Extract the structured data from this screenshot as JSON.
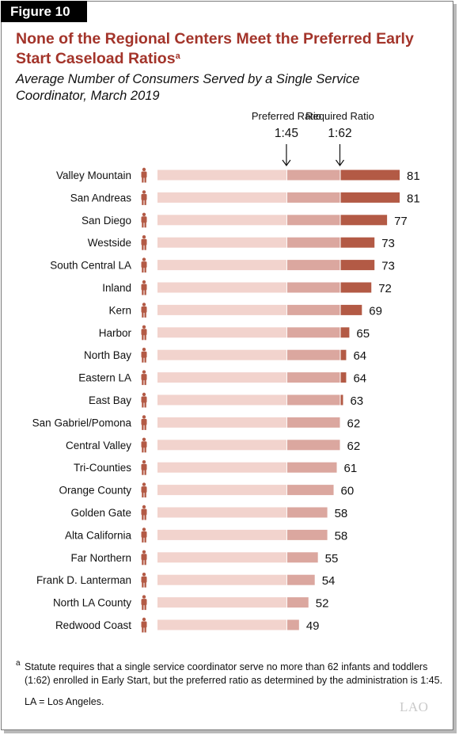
{
  "figure_label": "Figure 10",
  "title": "None of the Regional Centers Meet the Preferred Early Start Caseload Ratios",
  "title_footnote_mark": "a",
  "subtitle": "Average Number of Consumers Served by a Single Service Coordinator, March 2019",
  "markers": [
    {
      "label": "Preferred Ratio",
      "ratio": "1:45",
      "value": 45
    },
    {
      "label": "Required Ratio",
      "ratio": "1:62",
      "value": 62
    }
  ],
  "chart_data": {
    "type": "bar",
    "orientation": "horizontal",
    "categories": [
      "Valley Mountain",
      "San Andreas",
      "San Diego",
      "Westside",
      "South Central LA",
      "Inland",
      "Kern",
      "Harbor",
      "North Bay",
      "Eastern LA",
      "East Bay",
      "San Gabriel/Pomona",
      "Central Valley",
      "Tri-Counties",
      "Orange County",
      "Golden Gate",
      "Alta California",
      "Far Northern",
      "Frank D. Lanterman",
      "North LA County",
      "Redwood Coast"
    ],
    "values": [
      81,
      81,
      77,
      73,
      73,
      72,
      69,
      65,
      64,
      64,
      63,
      62,
      62,
      61,
      60,
      58,
      58,
      55,
      54,
      52,
      49
    ],
    "xlim": [
      4,
      81
    ],
    "segment_breaks": [
      45,
      62
    ],
    "colors": {
      "below_preferred": "#f2d3cd",
      "preferred_to_required": "#dba79f",
      "above_required": "#b35a45",
      "icon": "#b35a45"
    },
    "grid": false,
    "legend": "none"
  },
  "footnote_mark": "a",
  "footnote": "Statute requires that a single service coordinator serve no more than 62 infants and toddlers (1:62) enrolled in Early Start, but the preferred ratio as determined by the administration is 1:45.",
  "abbreviation_note": "LA = Los Angeles.",
  "logo": "LAO",
  "icons": {
    "row_icon": "person-icon",
    "marker_icon": "down-arrow-icon"
  }
}
